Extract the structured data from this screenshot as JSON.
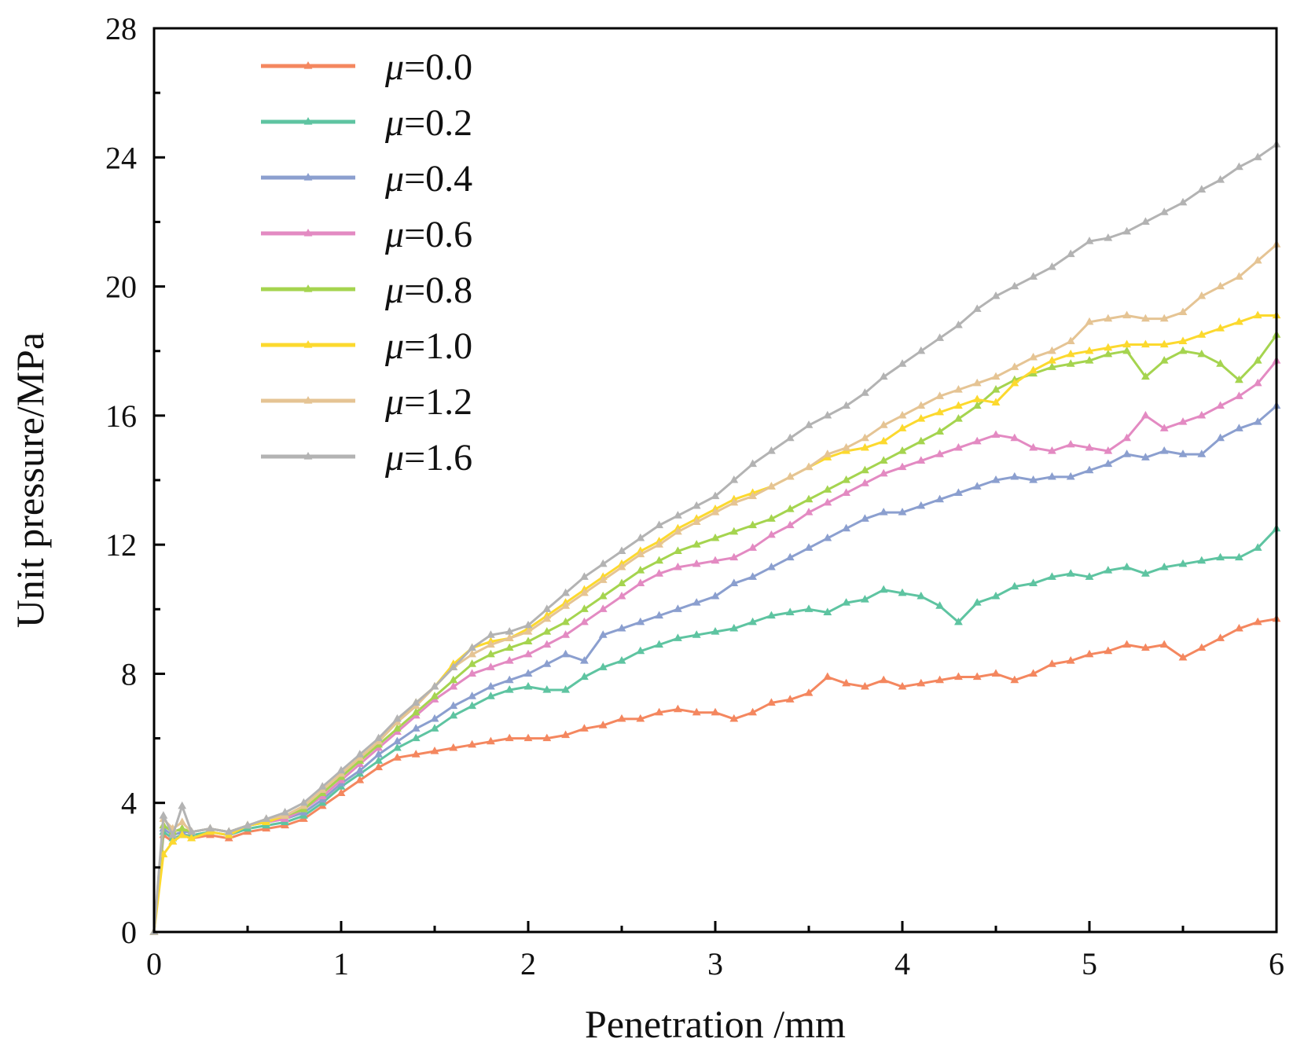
{
  "chart_data": {
    "type": "line",
    "xlabel": "Penetration /mm",
    "ylabel": "Unit pressure/MPa",
    "xlim": [
      0,
      6
    ],
    "ylim": [
      0,
      28
    ],
    "xticks": [
      0,
      1,
      2,
      3,
      4,
      5,
      6
    ],
    "yticks": [
      0,
      4,
      8,
      12,
      16,
      20,
      24,
      28
    ],
    "grid": false,
    "legend_position": "top-left",
    "marker": "triangle",
    "series": [
      {
        "name": "μ=0.0",
        "mu": "0.0",
        "color": "#f4875f",
        "x": [
          0,
          0.05,
          0.1,
          0.15,
          0.2,
          0.3,
          0.4,
          0.5,
          0.6,
          0.7,
          0.8,
          0.9,
          1.0,
          1.1,
          1.2,
          1.3,
          1.4,
          1.5,
          1.6,
          1.7,
          1.8,
          1.9,
          2.0,
          2.1,
          2.2,
          2.3,
          2.4,
          2.5,
          2.6,
          2.7,
          2.8,
          2.9,
          3.0,
          3.1,
          3.2,
          3.3,
          3.4,
          3.5,
          3.6,
          3.7,
          3.8,
          3.9,
          4.0,
          4.1,
          4.2,
          4.3,
          4.4,
          4.5,
          4.6,
          4.7,
          4.8,
          4.9,
          5.0,
          5.1,
          5.2,
          5.3,
          5.4,
          5.5,
          5.6,
          5.7,
          5.8,
          5.9,
          6.0
        ],
        "y": [
          0,
          3.0,
          2.8,
          3.0,
          2.9,
          3.0,
          2.9,
          3.1,
          3.2,
          3.3,
          3.5,
          3.9,
          4.3,
          4.7,
          5.1,
          5.4,
          5.5,
          5.6,
          5.7,
          5.8,
          5.9,
          6.0,
          6.0,
          6.0,
          6.1,
          6.3,
          6.4,
          6.6,
          6.6,
          6.8,
          6.9,
          6.8,
          6.8,
          6.6,
          6.8,
          7.1,
          7.2,
          7.4,
          7.9,
          7.7,
          7.6,
          7.8,
          7.6,
          7.7,
          7.8,
          7.9,
          7.9,
          8.0,
          7.8,
          8.0,
          8.3,
          8.4,
          8.6,
          8.7,
          8.9,
          8.8,
          8.9,
          8.5,
          8.8,
          9.1,
          9.4,
          9.6,
          9.7
        ]
      },
      {
        "name": "μ=0.2",
        "mu": "0.2",
        "color": "#5ec4a1",
        "x": [
          0,
          0.05,
          0.1,
          0.15,
          0.2,
          0.3,
          0.4,
          0.5,
          0.6,
          0.7,
          0.8,
          0.9,
          1.0,
          1.1,
          1.2,
          1.3,
          1.4,
          1.5,
          1.6,
          1.7,
          1.8,
          1.9,
          2.0,
          2.1,
          2.2,
          2.3,
          2.4,
          2.5,
          2.6,
          2.7,
          2.8,
          2.9,
          3.0,
          3.1,
          3.2,
          3.3,
          3.4,
          3.5,
          3.6,
          3.7,
          3.8,
          3.9,
          4.0,
          4.1,
          4.2,
          4.3,
          4.4,
          4.5,
          4.6,
          4.7,
          4.8,
          4.9,
          5.0,
          5.1,
          5.2,
          5.3,
          5.4,
          5.5,
          5.6,
          5.7,
          5.8,
          5.9,
          6.0
        ],
        "y": [
          0,
          3.1,
          2.9,
          3.0,
          3.0,
          3.1,
          3.0,
          3.2,
          3.3,
          3.4,
          3.6,
          4.0,
          4.5,
          4.9,
          5.3,
          5.7,
          6.0,
          6.3,
          6.7,
          7.0,
          7.3,
          7.5,
          7.6,
          7.5,
          7.5,
          7.9,
          8.2,
          8.4,
          8.7,
          8.9,
          9.1,
          9.2,
          9.3,
          9.4,
          9.6,
          9.8,
          9.9,
          10.0,
          9.9,
          10.2,
          10.3,
          10.6,
          10.5,
          10.4,
          10.1,
          9.6,
          10.2,
          10.4,
          10.7,
          10.8,
          11.0,
          11.1,
          11.0,
          11.2,
          11.3,
          11.1,
          11.3,
          11.4,
          11.5,
          11.6,
          11.6,
          11.9,
          12.5
        ]
      },
      {
        "name": "μ=0.4",
        "mu": "0.4",
        "color": "#8b9fcf",
        "x": [
          0,
          0.05,
          0.1,
          0.15,
          0.2,
          0.3,
          0.4,
          0.5,
          0.6,
          0.7,
          0.8,
          0.9,
          1.0,
          1.1,
          1.2,
          1.3,
          1.4,
          1.5,
          1.6,
          1.7,
          1.8,
          1.9,
          2.0,
          2.1,
          2.2,
          2.3,
          2.4,
          2.5,
          2.6,
          2.7,
          2.8,
          2.9,
          3.0,
          3.1,
          3.2,
          3.3,
          3.4,
          3.5,
          3.6,
          3.7,
          3.8,
          3.9,
          4.0,
          4.1,
          4.2,
          4.3,
          4.4,
          4.5,
          4.6,
          4.7,
          4.8,
          4.9,
          5.0,
          5.1,
          5.2,
          5.3,
          5.4,
          5.5,
          5.6,
          5.7,
          5.8,
          5.9,
          6.0
        ],
        "y": [
          0,
          3.2,
          3.0,
          3.1,
          3.1,
          3.2,
          3.1,
          3.3,
          3.4,
          3.5,
          3.7,
          4.1,
          4.6,
          5.0,
          5.5,
          5.9,
          6.3,
          6.6,
          7.0,
          7.3,
          7.6,
          7.8,
          8.0,
          8.3,
          8.6,
          8.4,
          9.2,
          9.4,
          9.6,
          9.8,
          10.0,
          10.2,
          10.4,
          10.8,
          11.0,
          11.3,
          11.6,
          11.9,
          12.2,
          12.5,
          12.8,
          13.0,
          13.0,
          13.2,
          13.4,
          13.6,
          13.8,
          14.0,
          14.1,
          14.0,
          14.1,
          14.1,
          14.3,
          14.5,
          14.8,
          14.7,
          14.9,
          14.8,
          14.8,
          15.3,
          15.6,
          15.8,
          16.3
        ]
      },
      {
        "name": "μ=0.6",
        "mu": "0.6",
        "color": "#e38ac2",
        "x": [
          0,
          0.05,
          0.1,
          0.15,
          0.2,
          0.3,
          0.4,
          0.5,
          0.6,
          0.7,
          0.8,
          0.9,
          1.0,
          1.1,
          1.2,
          1.3,
          1.4,
          1.5,
          1.6,
          1.7,
          1.8,
          1.9,
          2.0,
          2.1,
          2.2,
          2.3,
          2.4,
          2.5,
          2.6,
          2.7,
          2.8,
          2.9,
          3.0,
          3.1,
          3.2,
          3.3,
          3.4,
          3.5,
          3.6,
          3.7,
          3.8,
          3.9,
          4.0,
          4.1,
          4.2,
          4.3,
          4.4,
          4.5,
          4.6,
          4.7,
          4.8,
          4.9,
          5.0,
          5.1,
          5.2,
          5.3,
          5.4,
          5.5,
          5.6,
          5.7,
          5.8,
          5.9,
          6.0
        ],
        "y": [
          0,
          3.3,
          3.1,
          3.2,
          3.1,
          3.2,
          3.1,
          3.3,
          3.4,
          3.5,
          3.8,
          4.2,
          4.7,
          5.2,
          5.7,
          6.2,
          6.7,
          7.2,
          7.6,
          8.0,
          8.2,
          8.4,
          8.6,
          8.9,
          9.2,
          9.6,
          10.0,
          10.4,
          10.8,
          11.1,
          11.3,
          11.4,
          11.5,
          11.6,
          11.9,
          12.3,
          12.6,
          13.0,
          13.3,
          13.6,
          13.9,
          14.2,
          14.4,
          14.6,
          14.8,
          15.0,
          15.2,
          15.4,
          15.3,
          15.0,
          14.9,
          15.1,
          15.0,
          14.9,
          15.3,
          16.0,
          15.6,
          15.8,
          16.0,
          16.3,
          16.6,
          17.0,
          17.7
        ]
      },
      {
        "name": "μ=0.8",
        "mu": "0.8",
        "color": "#a5d44f",
        "x": [
          0,
          0.05,
          0.1,
          0.15,
          0.2,
          0.3,
          0.4,
          0.5,
          0.6,
          0.7,
          0.8,
          0.9,
          1.0,
          1.1,
          1.2,
          1.3,
          1.4,
          1.5,
          1.6,
          1.7,
          1.8,
          1.9,
          2.0,
          2.1,
          2.2,
          2.3,
          2.4,
          2.5,
          2.6,
          2.7,
          2.8,
          2.9,
          3.0,
          3.1,
          3.2,
          3.3,
          3.4,
          3.5,
          3.6,
          3.7,
          3.8,
          3.9,
          4.0,
          4.1,
          4.2,
          4.3,
          4.4,
          4.5,
          4.6,
          4.7,
          4.8,
          4.9,
          5.0,
          5.1,
          5.2,
          5.3,
          5.4,
          5.5,
          5.6,
          5.7,
          5.8,
          5.9,
          6.0
        ],
        "y": [
          0,
          3.3,
          3.1,
          3.2,
          3.1,
          3.2,
          3.1,
          3.3,
          3.4,
          3.6,
          3.8,
          4.3,
          4.8,
          5.3,
          5.8,
          6.3,
          6.8,
          7.3,
          7.8,
          8.3,
          8.6,
          8.8,
          9.0,
          9.3,
          9.6,
          10.0,
          10.4,
          10.8,
          11.2,
          11.5,
          11.8,
          12.0,
          12.2,
          12.4,
          12.6,
          12.8,
          13.1,
          13.4,
          13.7,
          14.0,
          14.3,
          14.6,
          14.9,
          15.2,
          15.5,
          15.9,
          16.3,
          16.8,
          17.1,
          17.3,
          17.5,
          17.6,
          17.7,
          17.9,
          18.0,
          17.2,
          17.7,
          18.0,
          17.9,
          17.6,
          17.1,
          17.7,
          18.5
        ]
      },
      {
        "name": "μ=1.0",
        "mu": "1.0",
        "color": "#fcd92e",
        "x": [
          0,
          0.05,
          0.1,
          0.15,
          0.2,
          0.3,
          0.4,
          0.5,
          0.6,
          0.7,
          0.8,
          0.9,
          1.0,
          1.1,
          1.2,
          1.3,
          1.4,
          1.5,
          1.6,
          1.7,
          1.8,
          1.9,
          2.0,
          2.1,
          2.2,
          2.3,
          2.4,
          2.5,
          2.6,
          2.7,
          2.8,
          2.9,
          3.0,
          3.1,
          3.2,
          3.3,
          3.4,
          3.5,
          3.6,
          3.7,
          3.8,
          3.9,
          4.0,
          4.1,
          4.2,
          4.3,
          4.4,
          4.5,
          4.6,
          4.7,
          4.8,
          4.9,
          5.0,
          5.1,
          5.2,
          5.3,
          5.4,
          5.5,
          5.6,
          5.7,
          5.8,
          5.9,
          6.0
        ],
        "y": [
          0,
          2.4,
          2.8,
          3.0,
          2.9,
          3.1,
          3.0,
          3.3,
          3.4,
          3.6,
          3.9,
          4.4,
          4.9,
          5.4,
          5.9,
          6.5,
          7.1,
          7.6,
          8.3,
          8.8,
          9.0,
          9.1,
          9.4,
          9.8,
          10.2,
          10.6,
          11.0,
          11.4,
          11.8,
          12.1,
          12.5,
          12.8,
          13.1,
          13.4,
          13.6,
          13.8,
          14.1,
          14.4,
          14.7,
          14.9,
          15.0,
          15.2,
          15.6,
          15.9,
          16.1,
          16.3,
          16.5,
          16.4,
          17.0,
          17.4,
          17.7,
          17.9,
          18.0,
          18.1,
          18.2,
          18.2,
          18.2,
          18.3,
          18.5,
          18.7,
          18.9,
          19.1,
          19.1
        ]
      },
      {
        "name": "μ=1.2",
        "mu": "1.2",
        "color": "#e5c494",
        "x": [
          0,
          0.05,
          0.1,
          0.15,
          0.2,
          0.3,
          0.4,
          0.5,
          0.6,
          0.7,
          0.8,
          0.9,
          1.0,
          1.1,
          1.2,
          1.3,
          1.4,
          1.5,
          1.6,
          1.7,
          1.8,
          1.9,
          2.0,
          2.1,
          2.2,
          2.3,
          2.4,
          2.5,
          2.6,
          2.7,
          2.8,
          2.9,
          3.0,
          3.1,
          3.2,
          3.3,
          3.4,
          3.5,
          3.6,
          3.7,
          3.8,
          3.9,
          4.0,
          4.1,
          4.2,
          4.3,
          4.4,
          4.5,
          4.6,
          4.7,
          4.8,
          4.9,
          5.0,
          5.1,
          5.2,
          5.3,
          5.4,
          5.5,
          5.6,
          5.7,
          5.8,
          5.9,
          6.0
        ],
        "y": [
          0,
          3.5,
          3.2,
          3.4,
          3.1,
          3.2,
          3.1,
          3.3,
          3.5,
          3.6,
          3.9,
          4.4,
          4.9,
          5.4,
          5.9,
          6.5,
          7.0,
          7.6,
          8.2,
          8.6,
          8.9,
          9.1,
          9.3,
          9.7,
          10.1,
          10.5,
          10.9,
          11.3,
          11.7,
          12.0,
          12.4,
          12.7,
          13.0,
          13.3,
          13.5,
          13.8,
          14.1,
          14.4,
          14.8,
          15.0,
          15.3,
          15.7,
          16.0,
          16.3,
          16.6,
          16.8,
          17.0,
          17.2,
          17.5,
          17.8,
          18.0,
          18.3,
          18.9,
          19.0,
          19.1,
          19.0,
          19.0,
          19.2,
          19.7,
          20.0,
          20.3,
          20.8,
          21.3
        ]
      },
      {
        "name": "μ=1.6",
        "mu": "1.6",
        "color": "#b3b3b3",
        "x": [
          0,
          0.05,
          0.1,
          0.15,
          0.2,
          0.3,
          0.4,
          0.5,
          0.6,
          0.7,
          0.8,
          0.9,
          1.0,
          1.1,
          1.2,
          1.3,
          1.4,
          1.5,
          1.6,
          1.7,
          1.8,
          1.9,
          2.0,
          2.1,
          2.2,
          2.3,
          2.4,
          2.5,
          2.6,
          2.7,
          2.8,
          2.9,
          3.0,
          3.1,
          3.2,
          3.3,
          3.4,
          3.5,
          3.6,
          3.7,
          3.8,
          3.9,
          4.0,
          4.1,
          4.2,
          4.3,
          4.4,
          4.5,
          4.6,
          4.7,
          4.8,
          4.9,
          5.0,
          5.1,
          5.2,
          5.3,
          5.4,
          5.5,
          5.6,
          5.7,
          5.8,
          5.9,
          6.0
        ],
        "y": [
          0,
          3.6,
          3.0,
          3.9,
          3.1,
          3.2,
          3.1,
          3.3,
          3.5,
          3.7,
          4.0,
          4.5,
          5.0,
          5.5,
          6.0,
          6.6,
          7.1,
          7.6,
          8.2,
          8.8,
          9.2,
          9.3,
          9.5,
          10.0,
          10.5,
          11.0,
          11.4,
          11.8,
          12.2,
          12.6,
          12.9,
          13.2,
          13.5,
          14.0,
          14.5,
          14.9,
          15.3,
          15.7,
          16.0,
          16.3,
          16.7,
          17.2,
          17.6,
          18.0,
          18.4,
          18.8,
          19.3,
          19.7,
          20.0,
          20.3,
          20.6,
          21.0,
          21.4,
          21.5,
          21.7,
          22.0,
          22.3,
          22.6,
          23.0,
          23.3,
          23.7,
          24.0,
          24.4
        ]
      }
    ]
  }
}
